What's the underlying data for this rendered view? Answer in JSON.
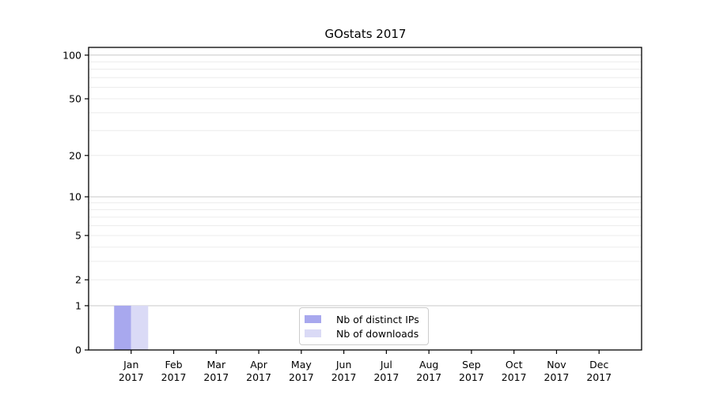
{
  "figure": {
    "title": "GOstats 2017"
  },
  "chart_data": {
    "type": "bar",
    "title": "GOstats 2017",
    "xlabel": "",
    "ylabel": "",
    "categories": [
      "Jan",
      "Feb",
      "Mar",
      "Apr",
      "May",
      "Jun",
      "Jul",
      "Aug",
      "Sep",
      "Oct",
      "Nov",
      "Dec"
    ],
    "category_year": "2017",
    "series": [
      {
        "name": "Nb of distinct IPs",
        "color": "#a8a8ee",
        "values": [
          1,
          0,
          0,
          0,
          0,
          0,
          0,
          0,
          0,
          0,
          0,
          0
        ]
      },
      {
        "name": "Nb of downloads",
        "color": "#dadaf6",
        "values": [
          1,
          0,
          0,
          0,
          0,
          0,
          0,
          0,
          0,
          0,
          0,
          0
        ]
      }
    ],
    "yaxis": {
      "scale": "log1p",
      "tick_values": [
        0,
        1,
        2,
        5,
        10,
        20,
        50,
        100
      ],
      "ylim": [
        0,
        113
      ],
      "grid_major_values": [
        1,
        10,
        100
      ],
      "grid_minor_values": [
        2,
        3,
        4,
        5,
        6,
        7,
        8,
        9,
        20,
        30,
        40,
        50,
        60,
        70,
        80,
        90
      ]
    },
    "legend": {
      "position": "lower center",
      "entries": [
        "Nb of distinct IPs",
        "Nb of downloads"
      ]
    },
    "style": {
      "grid_major_color": "#c9c9c9",
      "grid_minor_color": "#ececec",
      "axis_color": "#000000",
      "tick_label_color": "#000000"
    }
  }
}
